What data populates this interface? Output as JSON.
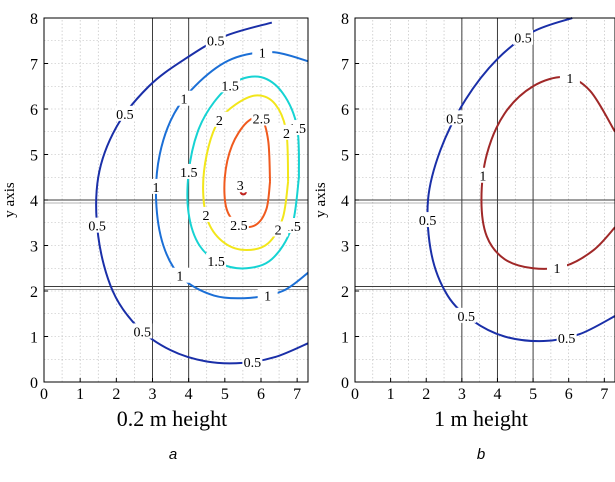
{
  "chart_data": [
    {
      "type": "contour",
      "panel_label": "a",
      "caption": "0.2 m height",
      "xlabel": "x axis",
      "ylabel": "y axis",
      "xlim": [
        0,
        7.3
      ],
      "ylim": [
        0,
        8
      ],
      "x_ticks": [
        "0",
        "1",
        "2",
        "3",
        "4",
        "5",
        "6",
        "7"
      ],
      "y_ticks": [
        "0",
        "1",
        "2",
        "3",
        "4",
        "5",
        "6",
        "7",
        "8"
      ],
      "grid": true,
      "reference_lines": {
        "x": [
          3,
          4
        ],
        "y": [
          2.1,
          4
        ]
      },
      "levels": [
        {
          "value": 0.5,
          "color": "#1a2fa8",
          "labels": [
            "0.5",
            "0.5",
            "0.5",
            "0.5",
            "0.5"
          ],
          "points": [
            [
              6.3,
              7.9
            ],
            [
              5.0,
              7.6
            ],
            [
              3.9,
              7.1
            ],
            [
              2.9,
              6.5
            ],
            [
              2.0,
              5.6
            ],
            [
              1.5,
              4.5
            ],
            [
              1.5,
              3.2
            ],
            [
              1.9,
              2.0
            ],
            [
              2.6,
              1.2
            ],
            [
              3.5,
              0.7
            ],
            [
              4.5,
              0.45
            ],
            [
              5.5,
              0.42
            ],
            [
              6.4,
              0.55
            ],
            [
              7.3,
              0.85
            ]
          ]
        },
        {
          "value": 1,
          "color": "#1b6fd6",
          "labels": [
            "1",
            "1",
            "1",
            "1",
            "1"
          ],
          "points": [
            [
              7.3,
              7.05
            ],
            [
              6.3,
              7.25
            ],
            [
              5.2,
              7.1
            ],
            [
              4.3,
              6.6
            ],
            [
              3.6,
              5.9
            ],
            [
              3.2,
              5.0
            ],
            [
              3.1,
              4.0
            ],
            [
              3.3,
              3.0
            ],
            [
              3.8,
              2.3
            ],
            [
              4.7,
              1.9
            ],
            [
              5.7,
              1.85
            ],
            [
              6.6,
              2.0
            ],
            [
              7.3,
              2.4
            ]
          ]
        },
        {
          "value": 1.5,
          "color": "#16d3d3",
          "labels": [
            "1.5",
            "1.5",
            "1.5",
            "1.5",
            "1.5"
          ],
          "points": [
            [
              7.05,
              4.5
            ],
            [
              7.0,
              5.6
            ],
            [
              6.6,
              6.35
            ],
            [
              6.0,
              6.7
            ],
            [
              5.3,
              6.6
            ],
            [
              4.7,
              6.15
            ],
            [
              4.25,
              5.5
            ],
            [
              4.0,
              4.6
            ],
            [
              4.0,
              3.7
            ],
            [
              4.3,
              3.0
            ],
            [
              4.9,
              2.6
            ],
            [
              5.6,
              2.5
            ],
            [
              6.3,
              2.7
            ],
            [
              6.85,
              3.4
            ],
            [
              7.05,
              4.5
            ]
          ]
        },
        {
          "value": 2,
          "color": "#f2e61a",
          "labels": [
            "2",
            "2",
            "2",
            "2"
          ],
          "points": [
            [
              6.75,
              4.4
            ],
            [
              6.7,
              5.5
            ],
            [
              6.4,
              6.1
            ],
            [
              5.9,
              6.3
            ],
            [
              5.3,
              6.1
            ],
            [
              4.8,
              5.7
            ],
            [
              4.5,
              5.0
            ],
            [
              4.4,
              4.2
            ],
            [
              4.55,
              3.5
            ],
            [
              5.0,
              3.05
            ],
            [
              5.6,
              2.9
            ],
            [
              6.2,
              3.05
            ],
            [
              6.6,
              3.6
            ],
            [
              6.75,
              4.4
            ]
          ]
        },
        {
          "value": 2.5,
          "color": "#f05a1e",
          "labels": [
            "2.5",
            "2.5"
          ],
          "points": [
            [
              6.25,
              4.4
            ],
            [
              6.2,
              5.3
            ],
            [
              6.0,
              5.8
            ],
            [
              5.6,
              5.7
            ],
            [
              5.2,
              5.2
            ],
            [
              5.0,
              4.5
            ],
            [
              5.05,
              3.8
            ],
            [
              5.4,
              3.45
            ],
            [
              5.85,
              3.45
            ],
            [
              6.15,
              3.8
            ],
            [
              6.25,
              4.4
            ]
          ]
        },
        {
          "value": 3,
          "color": "#c0231e",
          "labels": [
            "3"
          ],
          "points": [
            [
              5.6,
              4.2
            ],
            [
              5.6,
              4.35
            ],
            [
              5.5,
              4.4
            ],
            [
              5.42,
              4.3
            ],
            [
              5.45,
              4.15
            ],
            [
              5.55,
              4.13
            ],
            [
              5.6,
              4.2
            ]
          ]
        }
      ]
    },
    {
      "type": "contour",
      "panel_label": "b",
      "caption": "1 m height",
      "xlabel": "x axis",
      "ylabel": "y axis",
      "xlim": [
        0,
        7.3
      ],
      "ylim": [
        0,
        8
      ],
      "x_ticks": [
        "0",
        "1",
        "2",
        "3",
        "4",
        "5",
        "6",
        "7"
      ],
      "y_ticks": [
        "0",
        "1",
        "2",
        "3",
        "4",
        "5",
        "6",
        "7",
        "8"
      ],
      "grid": true,
      "reference_lines": {
        "x": [
          3,
          4,
          5
        ],
        "y": [
          2.1,
          4
        ]
      },
      "levels": [
        {
          "value": 0.5,
          "color": "#1a2fa8",
          "labels": [
            "0.5",
            "0.5",
            "0.5",
            "0.5",
            "0.5"
          ],
          "points": [
            [
              6.1,
              8.0
            ],
            [
              5.0,
              7.7
            ],
            [
              4.0,
              7.1
            ],
            [
              3.1,
              6.2
            ],
            [
              2.4,
              5.1
            ],
            [
              2.05,
              4.0
            ],
            [
              2.15,
              2.8
            ],
            [
              2.6,
              1.9
            ],
            [
              3.3,
              1.35
            ],
            [
              4.2,
              1.0
            ],
            [
              5.3,
              0.9
            ],
            [
              6.3,
              1.05
            ],
            [
              7.3,
              1.45
            ]
          ]
        },
        {
          "value": 1,
          "color": "#a02828",
          "labels": [
            "1",
            "1",
            "1"
          ],
          "points": [
            [
              7.3,
              5.5
            ],
            [
              6.6,
              6.4
            ],
            [
              5.9,
              6.7
            ],
            [
              5.0,
              6.5
            ],
            [
              4.2,
              5.9
            ],
            [
              3.7,
              5.0
            ],
            [
              3.55,
              4.0
            ],
            [
              3.7,
              3.2
            ],
            [
              4.2,
              2.7
            ],
            [
              5.0,
              2.5
            ],
            [
              5.9,
              2.55
            ],
            [
              6.7,
              2.9
            ],
            [
              7.3,
              3.4
            ]
          ]
        }
      ]
    }
  ]
}
